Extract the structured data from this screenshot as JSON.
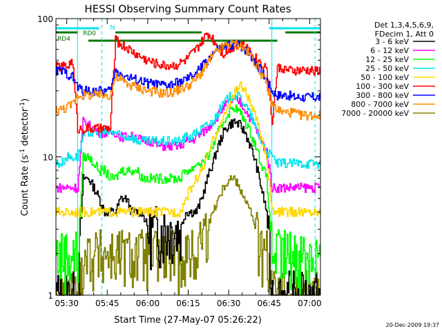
{
  "chart_data": {
    "type": "line",
    "title": "HESSI Observing Summary Count Rates",
    "xlabel": "Start Time (27-May-07 05:26:22)",
    "ylabel": "Count Rate (s",
    "ylabel_sup": "-1",
    "ylabel_tail": " detector",
    "ylabel_sup2": "-1",
    "ylabel_close": ")",
    "yscale": "log",
    "ylim": [
      1,
      100
    ],
    "xlim_minutes": [
      -4,
      94
    ],
    "x_ticks": [
      {
        "minute": 0,
        "label": "05:30"
      },
      {
        "minute": 15,
        "label": "05:45"
      },
      {
        "minute": 30,
        "label": "06:00"
      },
      {
        "minute": 45,
        "label": "06:15"
      },
      {
        "minute": 60,
        "label": "06:30"
      },
      {
        "minute": 75,
        "label": "06:45"
      },
      {
        "minute": 90,
        "label": "07:00"
      }
    ],
    "y_ticks": [
      {
        "value": 1,
        "label": "1"
      },
      {
        "value": 10,
        "label": "10"
      },
      {
        "value": 100,
        "label": "100"
      }
    ],
    "legend_header": [
      "Det 1,3,4,5,6,9,",
      "FDecim 1, Att 0"
    ],
    "legend_position": "right",
    "footer_date": "20-Dec-2009 19:37",
    "flags": [
      {
        "label": "N",
        "color": "#00e5ee"
      },
      {
        "label": "RD0",
        "color": "#007700"
      },
      {
        "label": "RD4",
        "color": "#007700"
      }
    ],
    "x": [
      -4,
      -2,
      0,
      2,
      4,
      6,
      8,
      10,
      12,
      14,
      16,
      18,
      20,
      22,
      24,
      26,
      28,
      30,
      32,
      34,
      36,
      38,
      40,
      42,
      44,
      46,
      48,
      50,
      52,
      54,
      56,
      58,
      60,
      62,
      64,
      66,
      68,
      70,
      72,
      74,
      76,
      78,
      80,
      82,
      84,
      86,
      88,
      90,
      92,
      94
    ],
    "series": [
      {
        "name": "3 - 6 keV",
        "color": "#000000",
        "values": [
          1,
          1,
          1,
          1,
          1,
          7,
          7,
          6,
          5,
          4,
          4,
          4,
          5,
          5,
          4,
          4,
          4,
          3,
          3,
          3,
          3,
          3,
          3,
          3,
          4,
          4,
          4,
          5,
          7,
          9,
          12,
          15,
          17,
          18,
          17,
          15,
          12,
          9,
          6,
          4,
          1,
          1,
          1,
          1,
          1,
          1,
          1,
          1,
          1,
          1
        ]
      },
      {
        "name": "6 - 12 keV",
        "color": "#ff00ff",
        "values": [
          null,
          null,
          null,
          null,
          null,
          null,
          null,
          null,
          null,
          null,
          null,
          null,
          null,
          null,
          null,
          null,
          null,
          null,
          null,
          null,
          null,
          null,
          null,
          null,
          null,
          null,
          null,
          null,
          null,
          null,
          null,
          null,
          null,
          null,
          null,
          null,
          null,
          null,
          null,
          null,
          null,
          null,
          null,
          null,
          null,
          null,
          null,
          null,
          null,
          null
        ]
      },
      {
        "name": "12 - 25 keV",
        "color": "#00ff00",
        "values": [
          2,
          2,
          2,
          2,
          2,
          10,
          10,
          9,
          8,
          8,
          7,
          7,
          8,
          8,
          8,
          8,
          7,
          7,
          7,
          7,
          7,
          7,
          7,
          7,
          8,
          8,
          9,
          9,
          10,
          12,
          15,
          18,
          21,
          23,
          21,
          18,
          15,
          12,
          9,
          7,
          2,
          2,
          2,
          2,
          2,
          2,
          2,
          2,
          2,
          2
        ]
      },
      {
        "name": "25 - 50 keV",
        "color": "#00e5ee",
        "values": [
          9,
          9,
          10,
          10,
          10,
          14,
          15,
          15,
          15,
          15,
          15,
          15,
          14,
          14,
          14,
          13,
          13,
          13,
          13,
          13,
          13,
          13,
          13,
          13,
          14,
          14,
          15,
          16,
          17,
          18,
          21,
          24,
          27,
          28,
          27,
          24,
          20,
          16,
          13,
          11,
          10,
          9,
          9,
          9,
          9,
          9,
          9,
          9,
          9,
          9
        ]
      },
      {
        "name": "50 - 100 keV",
        "color": "#ffd700",
        "values": [
          null,
          null,
          null,
          null,
          null,
          null,
          null,
          null,
          null,
          null,
          null,
          null,
          null,
          null,
          null,
          null,
          null,
          null,
          null,
          null,
          null,
          null,
          null,
          null,
          null,
          null,
          null,
          null,
          null,
          null,
          null,
          null,
          null,
          null,
          null,
          null,
          null,
          null,
          null,
          null,
          null,
          null,
          null,
          null,
          null,
          null,
          null,
          null,
          null,
          null
        ]
      },
      {
        "name": "100 - 300 keV",
        "color": "#ff0000",
        "values": [
          45,
          45,
          45,
          50,
          16,
          16,
          16,
          16,
          16,
          16,
          16,
          70,
          65,
          62,
          58,
          55,
          52,
          50,
          48,
          47,
          46,
          46,
          46,
          48,
          50,
          55,
          60,
          68,
          78,
          72,
          62,
          56,
          60,
          64,
          66,
          62,
          58,
          52,
          48,
          44,
          18,
          44,
          44,
          42,
          42,
          42,
          42,
          42,
          42,
          42
        ]
      },
      {
        "name": "300 - 800 keV",
        "color": "#0000ff",
        "values": [
          42,
          42,
          40,
          38,
          32,
          30,
          30,
          30,
          30,
          30,
          30,
          42,
          40,
          38,
          37,
          36,
          35,
          34,
          34,
          33,
          33,
          33,
          34,
          35,
          36,
          38,
          41,
          45,
          50,
          56,
          60,
          62,
          64,
          66,
          64,
          60,
          55,
          48,
          42,
          36,
          30,
          28,
          28,
          28,
          27,
          27,
          27,
          27,
          27,
          27
        ]
      },
      {
        "name": "800 - 7000 keV",
        "color": "#ff8c00",
        "values": [
          22,
          22,
          23,
          24,
          28,
          28,
          28,
          28,
          28,
          28,
          28,
          38,
          36,
          34,
          33,
          32,
          31,
          30,
          30,
          29,
          29,
          29,
          30,
          31,
          32,
          34,
          37,
          41,
          47,
          54,
          59,
          63,
          65,
          66,
          64,
          60,
          54,
          47,
          40,
          33,
          24,
          22,
          21,
          21,
          21,
          20,
          20,
          20,
          20,
          20
        ]
      },
      {
        "name": "7000 - 20000 keV",
        "color": "#808000",
        "values": [
          1,
          1,
          1,
          1,
          1,
          2,
          2,
          2,
          2,
          2,
          2,
          2,
          2,
          2,
          2,
          2,
          2,
          2,
          2,
          2,
          2,
          2,
          2,
          2,
          2,
          2,
          2,
          3,
          3,
          4,
          5,
          6,
          7,
          7,
          6,
          5,
          4,
          3,
          2,
          2,
          1,
          1,
          1,
          1,
          1,
          1,
          1,
          1,
          1,
          1
        ]
      }
    ],
    "series_extra": {
      "6 - 12 keV": [
        6,
        6,
        6,
        6,
        6,
        18,
        17,
        16,
        15,
        15,
        15,
        15,
        14,
        14,
        14,
        14,
        13,
        13,
        13,
        12,
        12,
        12,
        12,
        12,
        13,
        13,
        14,
        15,
        16,
        18,
        20,
        23,
        25,
        26,
        25,
        22,
        19,
        16,
        13,
        11,
        6,
        6,
        6,
        6,
        6,
        6,
        6,
        6,
        6,
        6
      ],
      "50 - 100 keV": [
        4,
        4,
        4,
        4,
        4,
        4,
        4,
        4,
        4,
        4,
        4,
        4,
        4,
        4,
        4,
        4,
        4,
        4,
        4,
        4,
        4,
        4,
        4,
        4,
        5,
        6,
        7,
        8,
        10,
        13,
        16,
        19,
        24,
        29,
        33,
        30,
        24,
        19,
        14,
        10,
        4,
        4,
        4,
        4,
        4,
        4,
        4,
        4,
        4,
        4
      ]
    }
  }
}
